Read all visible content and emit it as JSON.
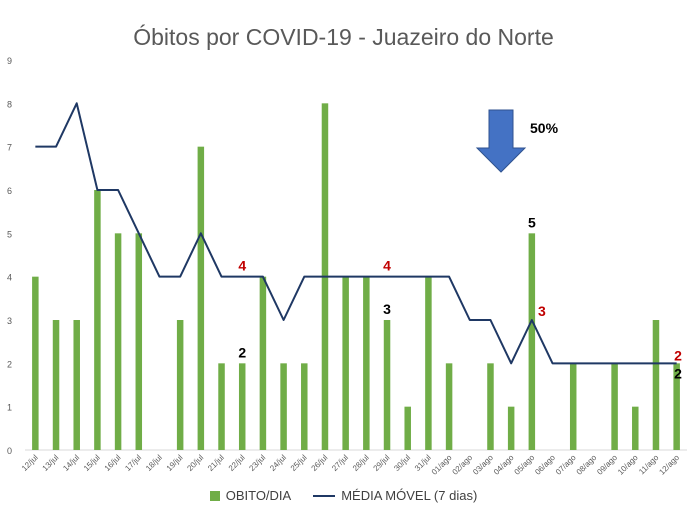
{
  "chart_data": {
    "type": "bar",
    "title": "Óbitos por COVID-19 - Juazeiro do Norte",
    "xlabel": "",
    "ylabel": "",
    "ylim": [
      0,
      9
    ],
    "yticks": [
      0,
      1,
      2,
      3,
      4,
      5,
      6,
      7,
      8,
      9
    ],
    "grid": false,
    "legend_position": "bottom",
    "categories": [
      "12/jul",
      "13/jul",
      "14/jul",
      "15/jul",
      "16/jul",
      "17/jul",
      "18/jul",
      "19/jul",
      "20/jul",
      "21/jul",
      "22/jul",
      "23/jul",
      "24/jul",
      "25/jul",
      "26/jul",
      "27/jul",
      "28/jul",
      "29/jul",
      "30/jul",
      "31/jul",
      "01/ago",
      "02/ago",
      "03/ago",
      "04/ago",
      "05/ago",
      "06/ago",
      "07/ago",
      "08/ago",
      "09/ago",
      "10/ago",
      "11/ago",
      "12/ago"
    ],
    "series": [
      {
        "name": "OBITO/DIA",
        "kind": "bar",
        "color": "#70ad47",
        "values": [
          4,
          3,
          3,
          6,
          5,
          5,
          0,
          3,
          7,
          2,
          2,
          4,
          2,
          2,
          8,
          4,
          4,
          3,
          1,
          4,
          2,
          0,
          2,
          1,
          5,
          0,
          2,
          0,
          2,
          1,
          3,
          2
        ]
      },
      {
        "name": "MÉDIA MÓVEL (7 dias)",
        "kind": "line",
        "color": "#1f3864",
        "values": [
          7,
          7,
          8,
          6,
          6,
          5,
          4,
          4,
          5,
          4,
          4,
          4,
          3,
          4,
          4,
          4,
          4,
          4,
          4,
          4,
          4,
          3,
          3,
          2,
          3,
          2,
          2,
          2,
          2,
          2,
          2,
          2
        ]
      }
    ],
    "annotations": [
      {
        "text": "4",
        "category": "22/jul",
        "y": 4,
        "color": "#c00000"
      },
      {
        "text": "2",
        "category": "22/jul",
        "y": 2,
        "color": "#000000"
      },
      {
        "text": "4",
        "category": "29/jul",
        "y": 4,
        "color": "#c00000"
      },
      {
        "text": "3",
        "category": "29/jul",
        "y": 3,
        "color": "#000000"
      },
      {
        "text": "5",
        "category": "05/ago",
        "y": 5,
        "color": "#000000"
      },
      {
        "text": "3",
        "category": "05/ago",
        "y": 3,
        "color": "#c00000"
      },
      {
        "text": "2",
        "category": "12/ago",
        "y": 2,
        "color": "#c00000"
      },
      {
        "text": "2",
        "category": "12/ago",
        "y": 2,
        "color": "#000000"
      }
    ],
    "callout": {
      "text": "50%",
      "icon": "arrow-down-icon",
      "color": "#4472c4"
    }
  }
}
